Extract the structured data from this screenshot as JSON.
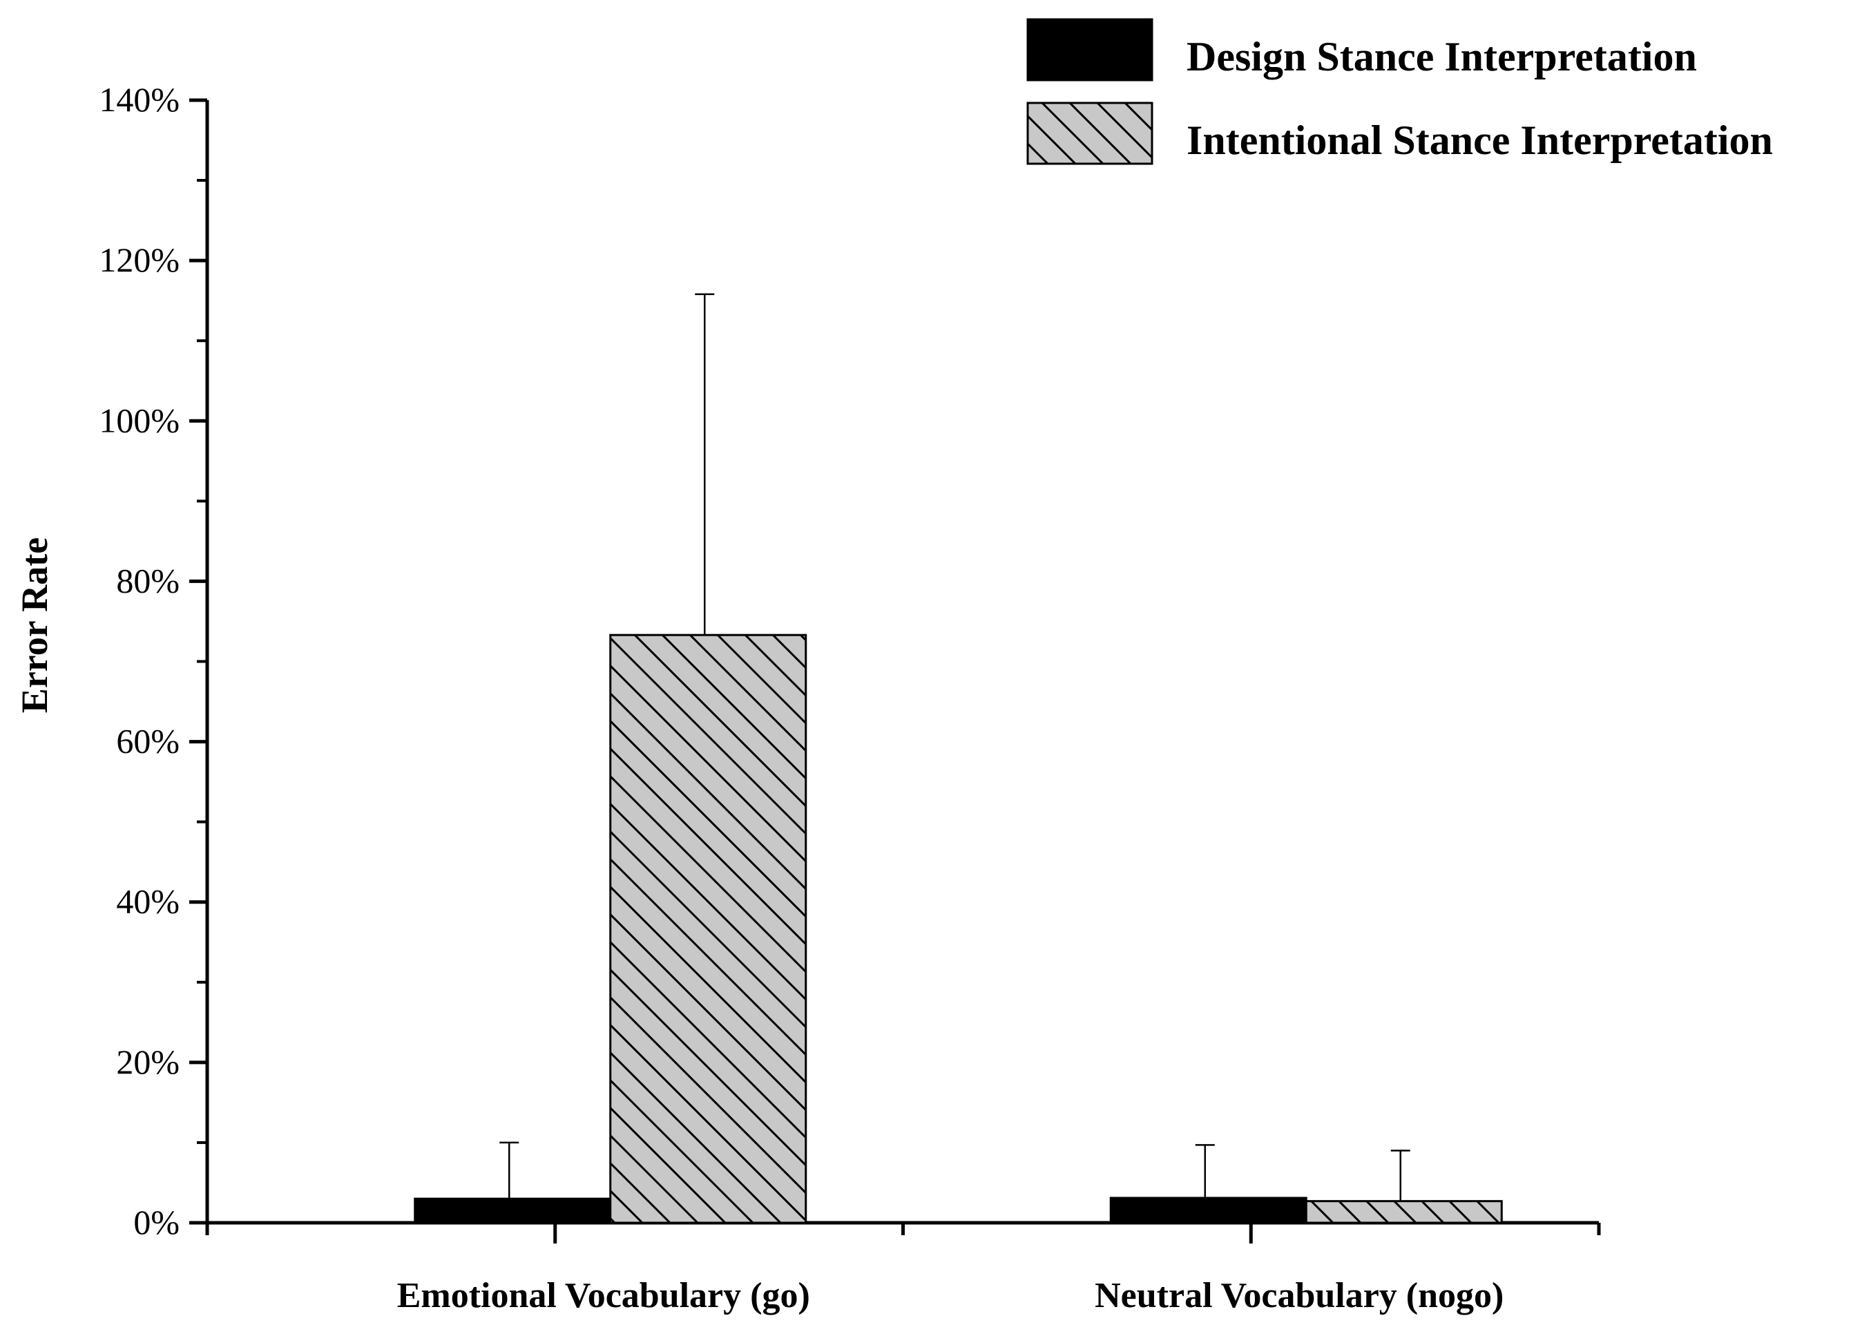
{
  "chart_data": {
    "type": "bar",
    "title": "",
    "xlabel": "",
    "ylabel": "Error Rate",
    "ylim": [
      0,
      140
    ],
    "yticks": [
      "0%",
      "20%",
      "40%",
      "60%",
      "80%",
      "100%",
      "120%",
      "140%"
    ],
    "categories": [
      "Emotional Vocabulary (go)",
      "Neutral Vocabulary (nogo)"
    ],
    "series": [
      {
        "name": "Design Stance Interpretation",
        "fill": "#000000",
        "pattern": "solid",
        "values": [
          3.0,
          3.1
        ],
        "errors": [
          7.0,
          6.6
        ]
      },
      {
        "name": "Intentional Stance Interpretation",
        "fill": "#c8c8c8",
        "pattern": "diagonal-hatch",
        "values": [
          73.3,
          2.7
        ],
        "errors": [
          42.5,
          6.3
        ]
      }
    ],
    "legend_position": "top-right",
    "grid": false
  }
}
